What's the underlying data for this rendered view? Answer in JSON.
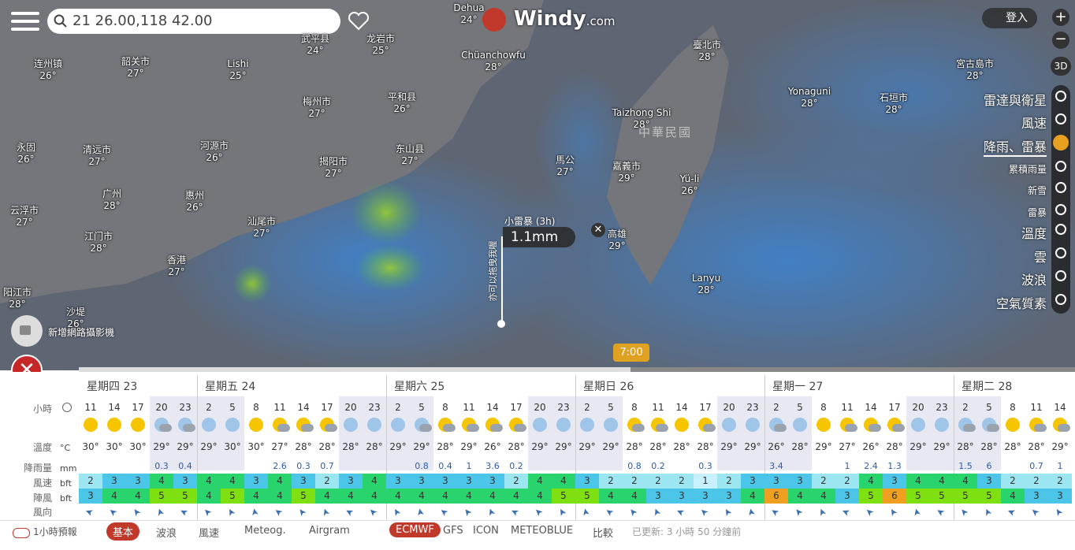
{
  "search": "21 26.00,118 42.00",
  "logo": {
    "name": "Windy",
    "suffix": "com"
  },
  "login": "登入",
  "view_3d": "3D",
  "map_labels": [
    {
      "name": "Dehua",
      "temp": "24°"
    },
    {
      "name": "龙岩市",
      "temp": "25°"
    },
    {
      "name": "武平县",
      "temp": "24°"
    },
    {
      "name": "连州镇",
      "temp": "26°"
    },
    {
      "name": "韶关市",
      "temp": "27°"
    },
    {
      "name": "Lishi",
      "temp": "25°"
    },
    {
      "name": "Chüanchowfu",
      "temp": "28°"
    },
    {
      "name": "臺北市",
      "temp": "28°"
    },
    {
      "name": "宮古島市",
      "temp": "28°"
    },
    {
      "name": "梅州市",
      "temp": "27°"
    },
    {
      "name": "平和县",
      "temp": "26°"
    },
    {
      "name": "Taizhong Shi",
      "temp": "28°"
    },
    {
      "name": "Yonaguni",
      "temp": "28°"
    },
    {
      "name": "石垣市",
      "temp": "28°"
    },
    {
      "name": "永固",
      "temp": "26°"
    },
    {
      "name": "清远市",
      "temp": "27°"
    },
    {
      "name": "河源市",
      "temp": "26°"
    },
    {
      "name": "揭阳市",
      "temp": "27°"
    },
    {
      "name": "东山县",
      "temp": "27°"
    },
    {
      "name": "馬公",
      "temp": "27°"
    },
    {
      "name": "嘉義市",
      "temp": "29°"
    },
    {
      "name": "Yü-li",
      "temp": "26°"
    },
    {
      "name": "广州",
      "temp": "28°"
    },
    {
      "name": "惠州",
      "temp": "26°"
    },
    {
      "name": "云浮市",
      "temp": "27°"
    },
    {
      "name": "汕尾市",
      "temp": "27°"
    },
    {
      "name": "江门市",
      "temp": "28°"
    },
    {
      "name": "高雄",
      "temp": "29°"
    },
    {
      "name": "香港",
      "temp": "27°"
    },
    {
      "name": "Lanyu",
      "temp": "28°"
    },
    {
      "name": "阳江市",
      "temp": "28°"
    },
    {
      "name": "沙堤",
      "temp": "26°"
    }
  ],
  "country_label": "中華民國",
  "popup": {
    "title": "小雷暴 (3h)",
    "value": "1.1mm",
    "hint": "亦可以拖曳我喔"
  },
  "webcam": "新增網路攝影機",
  "timeline_time": "7:00",
  "layers": [
    "雷達與衛星",
    "風速",
    "降雨、雷暴",
    "累積雨量",
    "新雪",
    "雷暴",
    "溫度",
    "雲",
    "波浪",
    "空氣質素"
  ],
  "active_layer": 2,
  "forecast": {
    "days": [
      "星期四 23",
      "星期五 24",
      "星期六 25",
      "星期日 26",
      "星期一 27",
      "星期二 28"
    ],
    "row_labels": [
      {
        "label": "小時"
      },
      {
        "label": "溫度",
        "unit": "°C"
      },
      {
        "label": "降雨量",
        "unit": "mm"
      },
      {
        "label": "風速",
        "unit": "bft"
      },
      {
        "label": "陣風",
        "unit": "bft"
      },
      {
        "label": "風向"
      }
    ],
    "hours": [
      11,
      14,
      17,
      20,
      23,
      2,
      5,
      8,
      11,
      14,
      17,
      20,
      23,
      2,
      5,
      8,
      11,
      14,
      17,
      20,
      23,
      2,
      5,
      8,
      11,
      14,
      17,
      20,
      23,
      2,
      5,
      8,
      11,
      14,
      17,
      20,
      23,
      2,
      5,
      8,
      11,
      14
    ],
    "temperature": [
      "30°",
      "30°",
      "30°",
      "29°",
      "29°",
      "29°",
      "30°",
      "30°",
      "27°",
      "28°",
      "28°",
      "28°",
      "28°",
      "29°",
      "29°",
      "28°",
      "29°",
      "26°",
      "28°",
      "29°",
      "29°",
      "29°",
      "29°",
      "28°",
      "28°",
      "28°",
      "28°",
      "29°",
      "29°",
      "26°",
      "28°",
      "29°",
      "27°",
      "26°",
      "28°",
      "29°",
      "29°",
      "28°",
      "28°",
      "28°",
      "28°",
      "29°"
    ],
    "rain": [
      null,
      null,
      null,
      0.3,
      0.4,
      null,
      null,
      null,
      2.6,
      0.3,
      0.7,
      null,
      null,
      null,
      0.8,
      0.4,
      1,
      3.6,
      0.2,
      null,
      null,
      null,
      null,
      0.8,
      0.2,
      null,
      0.3,
      null,
      null,
      3.4,
      null,
      null,
      1,
      2.4,
      1.3,
      null,
      null,
      1.5,
      6,
      null,
      0.7,
      1
    ],
    "wind": [
      2,
      3,
      3,
      4,
      3,
      4,
      4,
      3,
      4,
      3,
      2,
      3,
      4,
      3,
      3,
      3,
      3,
      3,
      2,
      4,
      4,
      3,
      2,
      2,
      2,
      2,
      1,
      2,
      3,
      3,
      3,
      2,
      2,
      4,
      3,
      4,
      4,
      4,
      3,
      2,
      2,
      2
    ],
    "gust": [
      3,
      4,
      4,
      5,
      5,
      4,
      5,
      4,
      4,
      5,
      4,
      4,
      4,
      4,
      4,
      4,
      4,
      4,
      4,
      4,
      5,
      5,
      4,
      4,
      3,
      3,
      3,
      3,
      4,
      6,
      4,
      4,
      3,
      5,
      6,
      5,
      5,
      5,
      5,
      4,
      3,
      3
    ]
  },
  "footer": {
    "hourly": "1小時預報",
    "tabs": [
      "基本",
      "波浪",
      "風速",
      "Meteog.",
      "Airgram"
    ],
    "models": [
      "ECMWF",
      "GFS",
      "ICON",
      "METEOBLUE",
      "比較"
    ],
    "updated": "已更新: 3 小時 50 分鐘前"
  }
}
